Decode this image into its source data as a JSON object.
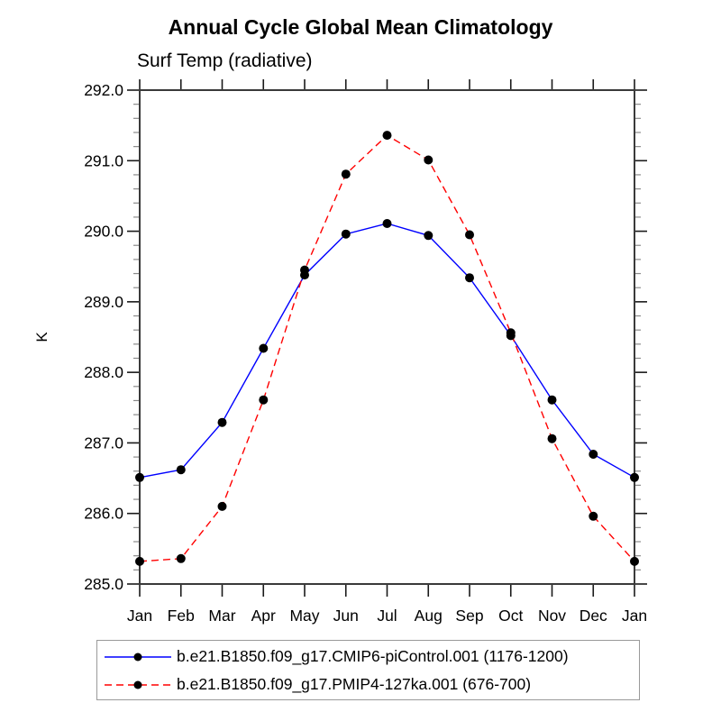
{
  "title": "Annual Cycle Global Mean Climatology",
  "subtitle": "Surf Temp (radiative)",
  "y_axis_label": "K",
  "chart_data": {
    "type": "line",
    "categories": [
      "Jan",
      "Feb",
      "Mar",
      "Apr",
      "May",
      "Jun",
      "Jul",
      "Aug",
      "Sep",
      "Oct",
      "Nov",
      "Dec",
      "Jan"
    ],
    "series": [
      {
        "name": "b.e21.B1850.f09_g17.CMIP6-piControl.001 (1176-1200)",
        "color": "#0000ff",
        "line_style": "solid",
        "marker": "filled-circle",
        "values": [
          286.51,
          286.62,
          287.29,
          288.34,
          289.38,
          289.96,
          290.11,
          289.94,
          289.34,
          288.52,
          287.61,
          286.84,
          286.51
        ]
      },
      {
        "name": "b.e21.B1850.f09_g17.PMIP4-127ka.001 (676-700)",
        "color": "#ff0000",
        "line_style": "dashed",
        "marker": "filled-circle",
        "values": [
          285.32,
          285.36,
          286.1,
          287.61,
          289.45,
          290.81,
          291.36,
          291.01,
          289.95,
          288.56,
          287.06,
          285.96,
          285.32
        ]
      }
    ],
    "title": "Annual Cycle Global Mean Climatology",
    "subtitle": "Surf Temp (radiative)",
    "xlabel": "",
    "ylabel": "K",
    "ylim": [
      285.0,
      292.0
    ],
    "y_tick_step": 1.0,
    "y_minor_step": 0.2,
    "y_tick_labels": [
      "285.0",
      "286.0",
      "287.0",
      "288.0",
      "289.0",
      "290.0",
      "291.0",
      "292.0"
    ],
    "grid": false,
    "legend_position": "bottom-left-box",
    "marker_color": "#000000"
  }
}
